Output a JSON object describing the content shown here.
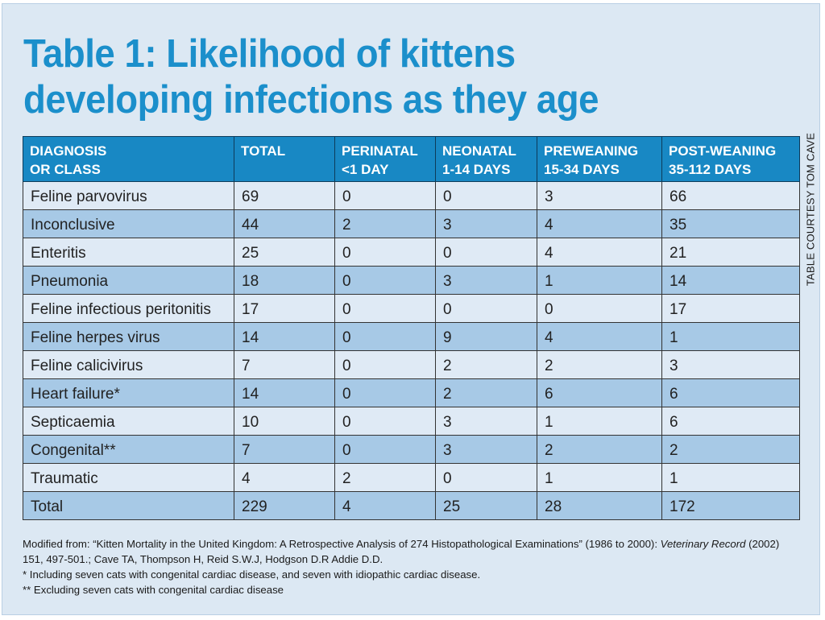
{
  "title": {
    "line1": "Table 1: Likelihood of kittens",
    "line2": "developing infections as they age"
  },
  "credit": "TABLE COURTESY TOM CAVE",
  "table": {
    "headers": [
      [
        "DIAGNOSIS",
        "OR CLASS"
      ],
      [
        "TOTAL",
        ""
      ],
      [
        "PERINATAL",
        "<1 DAY"
      ],
      [
        "NEONATAL",
        "1-14 DAYS"
      ],
      [
        "PREWEANING",
        "15-34 DAYS"
      ],
      [
        "POST-WEANING",
        "35-112 DAYS"
      ]
    ],
    "rows": [
      [
        "Feline parvovirus",
        "69",
        "0",
        "0",
        "3",
        "66"
      ],
      [
        "Inconclusive",
        "44",
        "2",
        "3",
        "4",
        "35"
      ],
      [
        "Enteritis",
        "25",
        "0",
        "0",
        "4",
        "21"
      ],
      [
        "Pneumonia",
        "18",
        "0",
        "3",
        "1",
        "14"
      ],
      [
        "Feline infectious peritonitis",
        "17",
        "0",
        "0",
        "0",
        "17"
      ],
      [
        "Feline herpes virus",
        "14",
        "0",
        "9",
        "4",
        "1"
      ],
      [
        "Feline calicivirus",
        "7",
        "0",
        "2",
        "2",
        "3"
      ],
      [
        "Heart failure*",
        "14",
        "0",
        "2",
        "6",
        "6"
      ],
      [
        "Septicaemia",
        "10",
        "0",
        "3",
        "1",
        "6"
      ],
      [
        "Congenital**",
        "7",
        "0",
        "3",
        "2",
        "2"
      ],
      [
        "Traumatic",
        "4",
        "2",
        "0",
        "1",
        "1"
      ],
      [
        "Total",
        "229",
        "4",
        "25",
        "28",
        "172"
      ]
    ]
  },
  "notes": {
    "source_prefix": "Modified from: “Kitten Mortality in the United Kingdom: A Retrospective Analysis of 274 Histopathological Examinations” (1986 to 2000): ",
    "source_journal": "Veterinary Record",
    "source_suffix": " (2002) 151, 497-501.; Cave TA, Thompson H, Reid S.W.J, Hodgson D.R Addie D.D.",
    "footnote1": "* Including seven cats with congenital cardiac disease, and seven with idiopathic cardiac disease.",
    "footnote2": "** Excluding seven cats with congenital cardiac disease"
  },
  "colors": {
    "title": "#1b8fcb",
    "header_bg": "#1888c4",
    "row_light": "#dfeaf5",
    "row_dark": "#a7c9e6",
    "panel_bg": "#dce8f3"
  }
}
